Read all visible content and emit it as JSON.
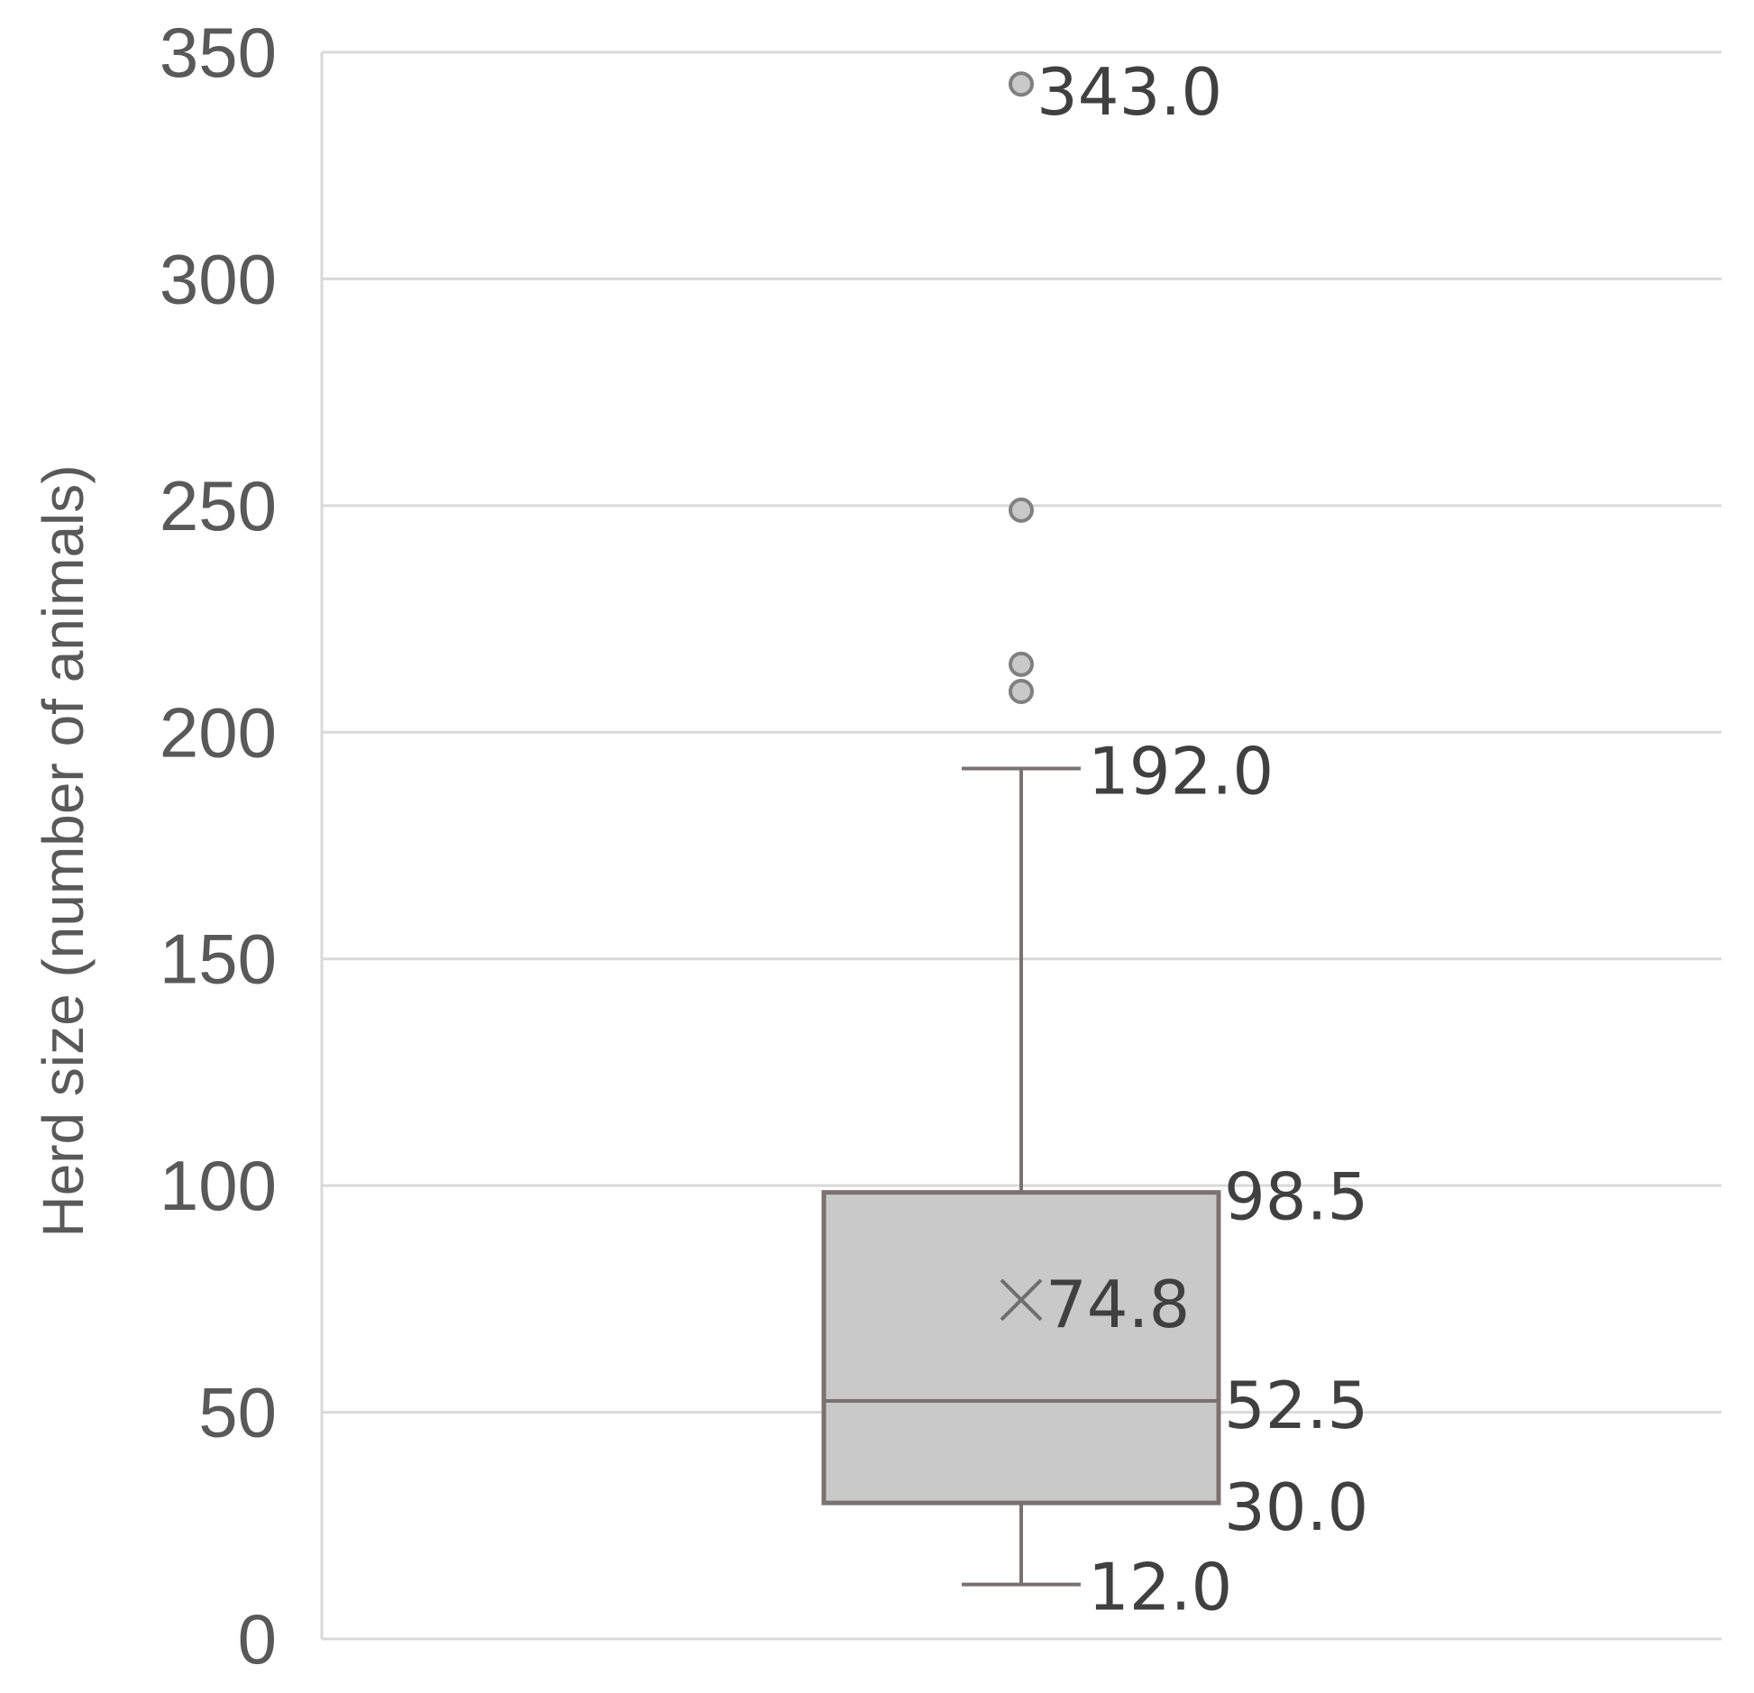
{
  "chart_data": {
    "type": "boxplot",
    "ylabel": "Herd size (number of animals)",
    "ylim": [
      0,
      350
    ],
    "yticks": [
      0,
      50,
      100,
      150,
      200,
      250,
      300,
      350
    ],
    "grid": true,
    "colors": {
      "box_fill": "#c9c9c9",
      "box_stroke": "#7a7272",
      "outlier_fill": "#c9c9c9",
      "outlier_stroke": "#808080",
      "grid": "#d9d9d9",
      "text": "#404040"
    },
    "box": {
      "min": 12.0,
      "q1": 30.0,
      "median": 52.5,
      "q3": 98.5,
      "max": 192.0,
      "mean": 74.8,
      "outliers": [
        209,
        215,
        249,
        343
      ]
    },
    "labels": {
      "min": "12.0",
      "q1": "30.0",
      "median": "52.5",
      "q3": "98.5",
      "max": "192.0",
      "mean": "74.8",
      "top_outlier": "343.0"
    }
  }
}
